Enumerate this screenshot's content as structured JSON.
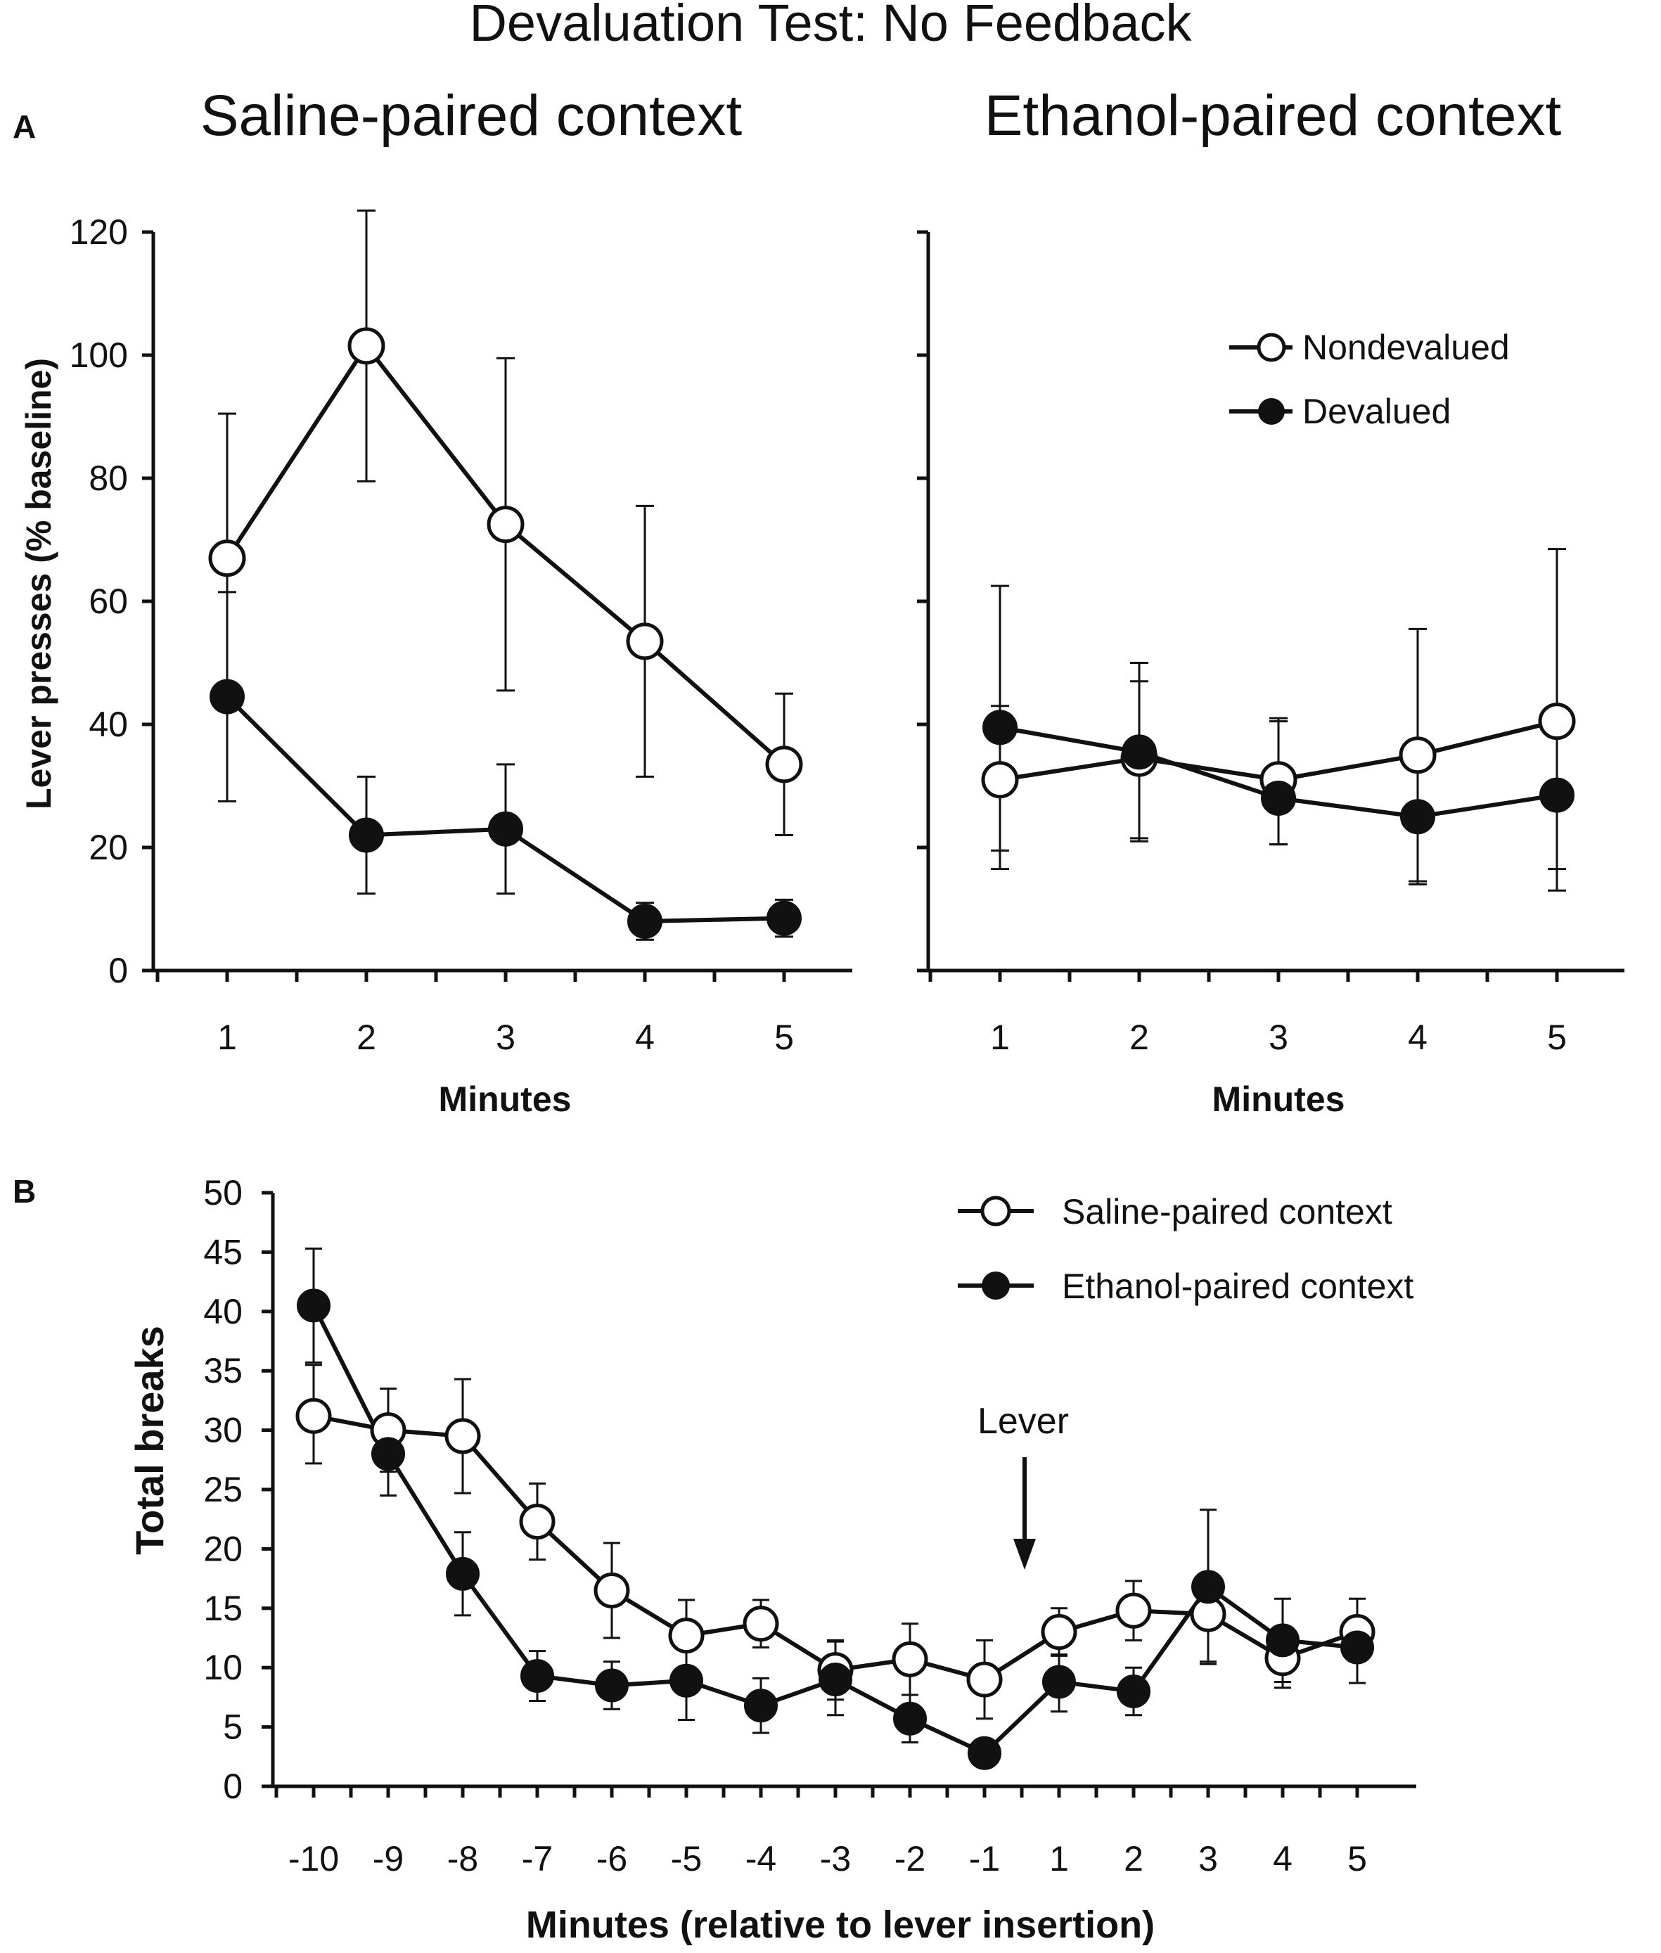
{
  "figure_title": "Devaluation Test: No Feedback",
  "colors": {
    "ink": "#111111",
    "open_fill": "#ffffff",
    "filled": "#111111"
  },
  "chart_data": [
    {
      "id": "A-left",
      "panel_label": "A",
      "type": "line",
      "title": "Saline-paired context",
      "xlabel": "Minutes",
      "ylabel": "Lever presses (% baseline)",
      "categories": [
        "1",
        "2",
        "3",
        "4",
        "5"
      ],
      "ylim": [
        0,
        120
      ],
      "yticks": [
        "0",
        "20",
        "40",
        "60",
        "80",
        "100",
        "120"
      ],
      "series": [
        {
          "name": "Nondevalued",
          "marker": "open",
          "values": [
            67,
            101.5,
            72.5,
            53.5,
            33.5
          ],
          "err_up": [
            23.5,
            22,
            27,
            22,
            11.5
          ],
          "err_down": [
            23.5,
            22,
            27,
            22,
            11.5
          ]
        },
        {
          "name": "Devalued",
          "marker": "filled",
          "values": [
            44.5,
            22,
            23,
            8,
            8.5
          ],
          "err_up": [
            17,
            9.5,
            10.5,
            3,
            3
          ],
          "err_down": [
            17,
            9.5,
            10.5,
            3,
            3
          ]
        }
      ]
    },
    {
      "id": "A-right",
      "panel_label": "",
      "type": "line",
      "title": "Ethanol-paired context",
      "xlabel": "Minutes",
      "ylabel": "",
      "categories": [
        "1",
        "2",
        "3",
        "4",
        "5"
      ],
      "ylim": [
        0,
        120
      ],
      "legend": [
        {
          "label": "Nondevalued",
          "marker": "open"
        },
        {
          "label": "Devalued",
          "marker": "filled"
        }
      ],
      "legend_position": "top-right",
      "series": [
        {
          "name": "Nondevalued",
          "marker": "open",
          "values": [
            31,
            34.5,
            31,
            35,
            40.5
          ],
          "err_up": [
            12,
            12.5,
            10,
            20.5,
            28
          ],
          "err_down": [
            14.5,
            13,
            10.5,
            20.5,
            27.5
          ]
        },
        {
          "name": "Devalued",
          "marker": "filled",
          "values": [
            39.5,
            35.5,
            28,
            25,
            28.5
          ],
          "err_up": [
            23,
            14.5,
            12.5,
            0.5,
            0.5
          ],
          "err_down": [
            20,
            14.5,
            7.5,
            11,
            12
          ]
        }
      ]
    },
    {
      "id": "B",
      "panel_label": "B",
      "type": "line",
      "title": "",
      "xlabel": "Minutes (relative to lever insertion)",
      "ylabel": "Total breaks",
      "categories": [
        "-10",
        "-9",
        "-8",
        "-7",
        "-6",
        "-5",
        "-4",
        "-3",
        "-2",
        "-1",
        "1",
        "2",
        "3",
        "4",
        "5"
      ],
      "ylim": [
        0,
        50
      ],
      "yticks": [
        "0",
        "5",
        "10",
        "15",
        "20",
        "25",
        "30",
        "35",
        "40",
        "45",
        "50"
      ],
      "legend": [
        {
          "label": "Saline-paired context",
          "marker": "open"
        },
        {
          "label": "Ethanol-paired context",
          "marker": "filled"
        }
      ],
      "legend_position": "top-right",
      "annotation": {
        "text": "Lever",
        "between": [
          "-1",
          "1"
        ]
      },
      "series": [
        {
          "name": "Saline-paired context",
          "marker": "open",
          "values": [
            31.2,
            30,
            29.5,
            22.3,
            16.5,
            12.7,
            13.7,
            9.8,
            10.7,
            9,
            13,
            14.8,
            14.5,
            10.8,
            13
          ],
          "err_up": [
            4.3,
            3.5,
            4.8,
            3.2,
            4,
            3,
            2,
            2.5,
            3,
            3.3,
            2,
            2.5,
            0,
            0,
            2.8
          ],
          "err_down": [
            4,
            3.5,
            4.8,
            3.2,
            4,
            3,
            2,
            2.5,
            3,
            3.3,
            2,
            2.5,
            4,
            2.5,
            0
          ]
        },
        {
          "name": "Ethanol-paired context",
          "marker": "filled",
          "values": [
            40.5,
            28,
            17.9,
            9.3,
            8.5,
            8.9,
            6.8,
            9,
            5.7,
            2.8,
            8.8,
            8,
            16.8,
            12.3,
            11.7
          ],
          "err_up": [
            4.8,
            2.5,
            3.5,
            2.1,
            2,
            3.3,
            2.3,
            3.2,
            2,
            0,
            2.3,
            2,
            6.5,
            3.5,
            0
          ],
          "err_down": [
            4.8,
            3.5,
            3.5,
            2.1,
            2,
            3.3,
            2.3,
            3,
            2,
            0,
            2.5,
            2,
            6.5,
            3.5,
            3
          ]
        }
      ]
    }
  ]
}
